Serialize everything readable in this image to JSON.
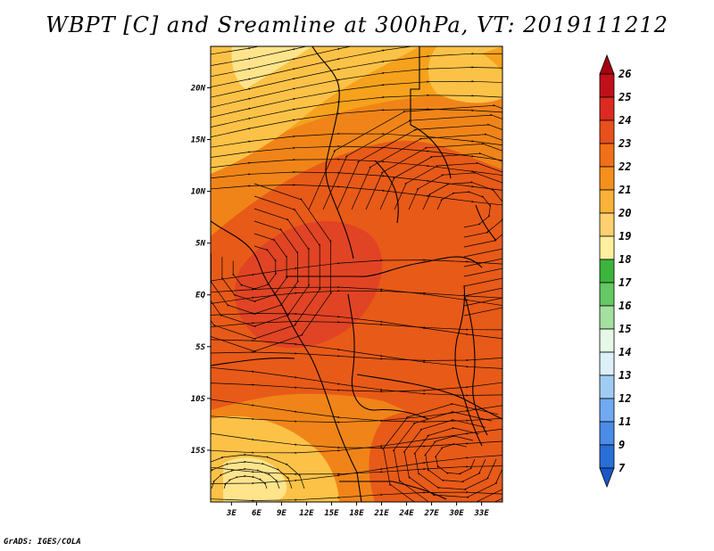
{
  "title": "WBPT [C] and Sreamline at 300hPa, VT: 2019111212",
  "credit": "GrADS: IGES/COLA",
  "map": {
    "region": "Central and Southern Africa",
    "lat_ticks": [
      {
        "lat": 20,
        "label": "20N"
      },
      {
        "lat": 15,
        "label": "15N"
      },
      {
        "lat": 10,
        "label": "10N"
      },
      {
        "lat": 5,
        "label": "5N"
      },
      {
        "lat": 0,
        "label": "EQ"
      },
      {
        "lat": -5,
        "label": "5S"
      },
      {
        "lat": -10,
        "label": "10S"
      },
      {
        "lat": -15,
        "label": "15S"
      }
    ],
    "lon_ticks": [
      {
        "lon": 3,
        "label": "3E"
      },
      {
        "lon": 6,
        "label": "6E"
      },
      {
        "lon": 9,
        "label": "9E"
      },
      {
        "lon": 12,
        "label": "12E"
      },
      {
        "lon": 15,
        "label": "15E"
      },
      {
        "lon": 18,
        "label": "18E"
      },
      {
        "lon": 21,
        "label": "21E"
      },
      {
        "lon": 24,
        "label": "24E"
      },
      {
        "lon": 27,
        "label": "27E"
      },
      {
        "lon": 30,
        "label": "30E"
      },
      {
        "lon": 33,
        "label": "33E"
      }
    ],
    "lon_range": [
      0.5,
      35.5
    ],
    "lat_range": [
      -20,
      24
    ],
    "field_colors": {
      "c19": "#ffe48c",
      "c20": "#fcc247",
      "c21": "#f6a21c",
      "c22": "#f08418",
      "c23": "#e85a18",
      "c24": "#e04424"
    }
  },
  "colorbar": {
    "levels": [
      "26",
      "25",
      "24",
      "23",
      "22",
      "21",
      "20",
      "19",
      "18",
      "17",
      "16",
      "15",
      "14",
      "13",
      "12",
      "11",
      "9",
      "7"
    ],
    "colors": [
      "#a50010",
      "#c0101a",
      "#dc2a20",
      "#e8501c",
      "#f07018",
      "#f6901c",
      "#fab238",
      "#ffd070",
      "#ffef9e",
      "#3cb43c",
      "#64c864",
      "#a4e0a0",
      "#e6f8e6",
      "#dcf0fa",
      "#a0ccf4",
      "#70aaf0",
      "#4a8ce6",
      "#2a6ed8",
      "#1a58c8"
    ]
  }
}
